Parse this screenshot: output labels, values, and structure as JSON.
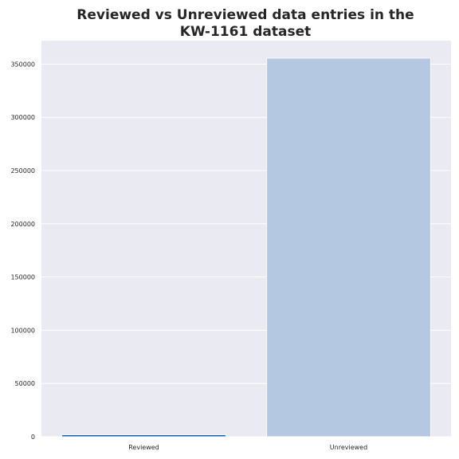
{
  "chart_data": {
    "type": "bar",
    "title_lines": [
      "Reviewed vs Unreviewed data entries in the",
      "KW-1161 dataset"
    ],
    "categories": [
      "Reviewed",
      "Unreviewed"
    ],
    "values": [
      1800,
      355500
    ],
    "bar_colors": [
      "#1f68b4",
      "#b4c8e2"
    ],
    "xlabel": "",
    "ylabel": "",
    "ylim": [
      0,
      372000
    ],
    "yticks": [
      0,
      50000,
      100000,
      150000,
      200000,
      250000,
      300000,
      350000
    ],
    "grid": true,
    "legend": "none",
    "plot_background": "#eaeaf2",
    "grid_color": "#ffffff"
  }
}
